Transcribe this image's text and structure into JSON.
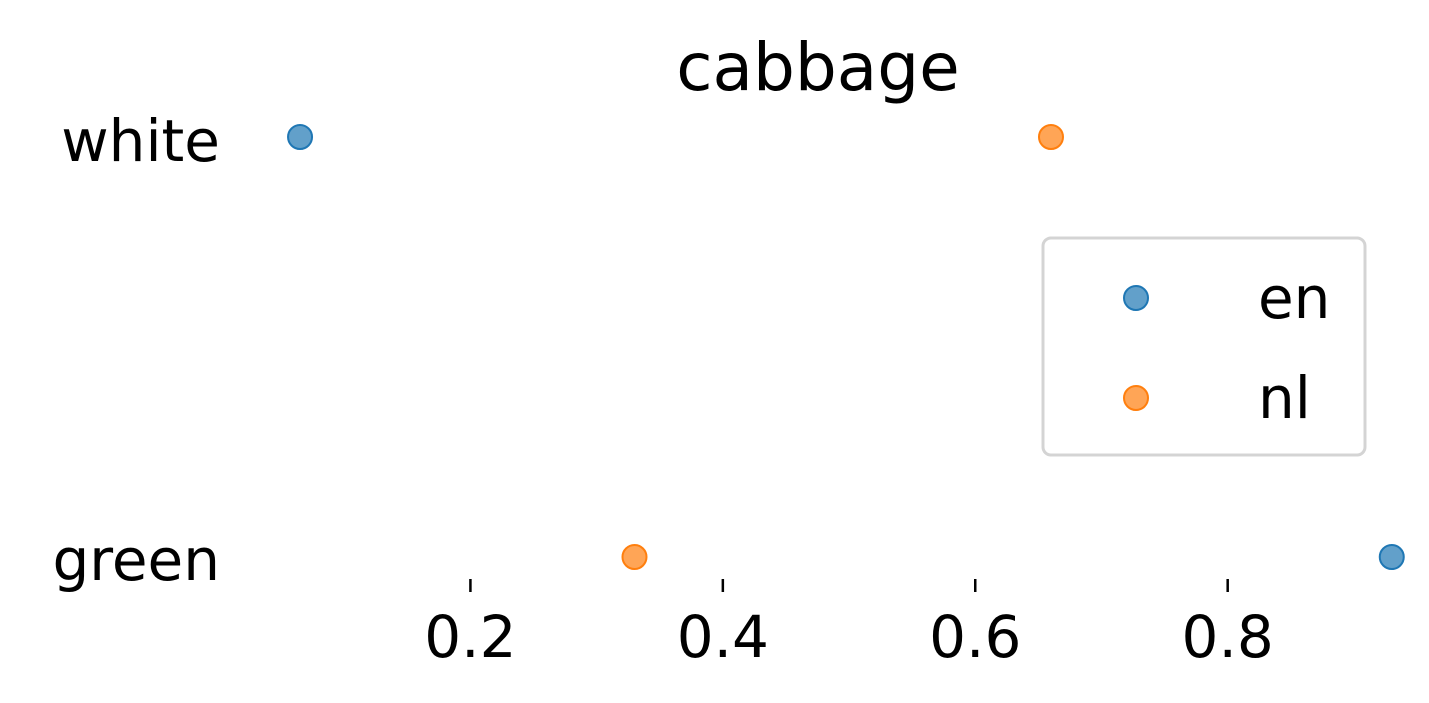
{
  "chart_data": {
    "type": "scatter",
    "title": "cabbage",
    "xlabel": "",
    "ylabel": "",
    "categories": [
      "white",
      "green"
    ],
    "xlim": [
      0.0,
      0.95
    ],
    "x_ticks": [
      0.2,
      0.4,
      0.6,
      0.8
    ],
    "x_tick_labels": [
      "0.2",
      "0.4",
      "0.6",
      "0.8"
    ],
    "grid": false,
    "legend_position": "right",
    "series": [
      {
        "name": "en",
        "color": "#1f77b4",
        "values": [
          0.065,
          0.93
        ]
      },
      {
        "name": "nl",
        "color": "#ff7f0e",
        "values": [
          0.66,
          0.33
        ]
      }
    ]
  }
}
